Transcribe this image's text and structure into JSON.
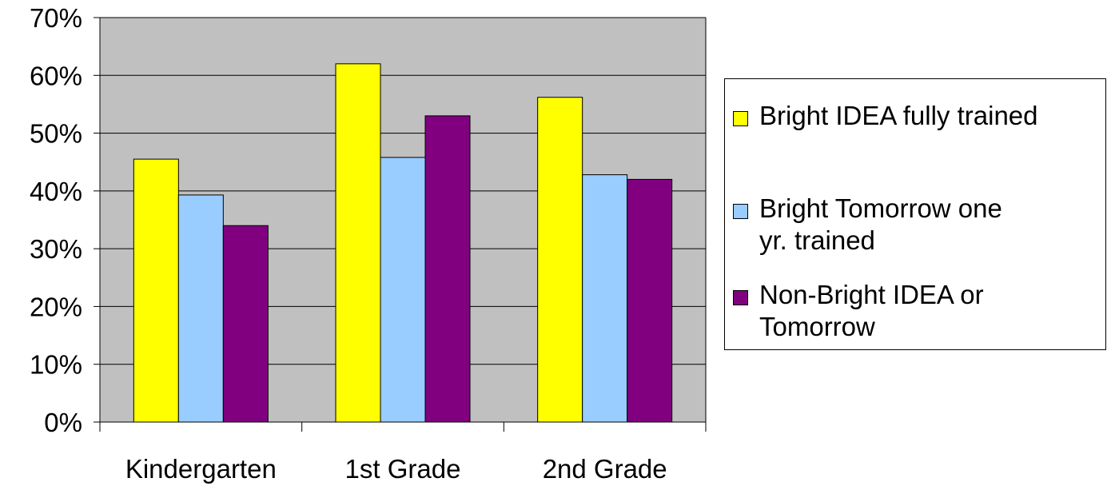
{
  "chart_data": {
    "type": "bar",
    "categories": [
      "Kindergarten",
      "1st Grade",
      "2nd Grade"
    ],
    "series": [
      {
        "name": "Bright IDEA fully trained",
        "values": [
          45.5,
          62,
          56.2
        ],
        "color": "#ffff00"
      },
      {
        "name": "Bright Tomorrow one yr. trained",
        "values": [
          39.3,
          45.8,
          42.8
        ],
        "color": "#99ccff"
      },
      {
        "name": "Non-Bright IDEA or Tomorrow",
        "values": [
          34,
          53,
          42
        ],
        "color": "#800080"
      }
    ],
    "ylim": [
      0,
      70
    ],
    "yticks": [
      "0%",
      "10%",
      "20%",
      "30%",
      "40%",
      "50%",
      "60%",
      "70%"
    ],
    "grid": true,
    "plot_background": "#c0c0c0",
    "legend_position": "right"
  },
  "legend": {
    "items": [
      {
        "label": "Bright IDEA fully trained",
        "color": "#ffff00"
      },
      {
        "label": "Bright Tomorrow one yr. trained",
        "color": "#99ccff"
      },
      {
        "label": "Non-Bright IDEA or Tomorrow",
        "color": "#800080"
      }
    ]
  }
}
